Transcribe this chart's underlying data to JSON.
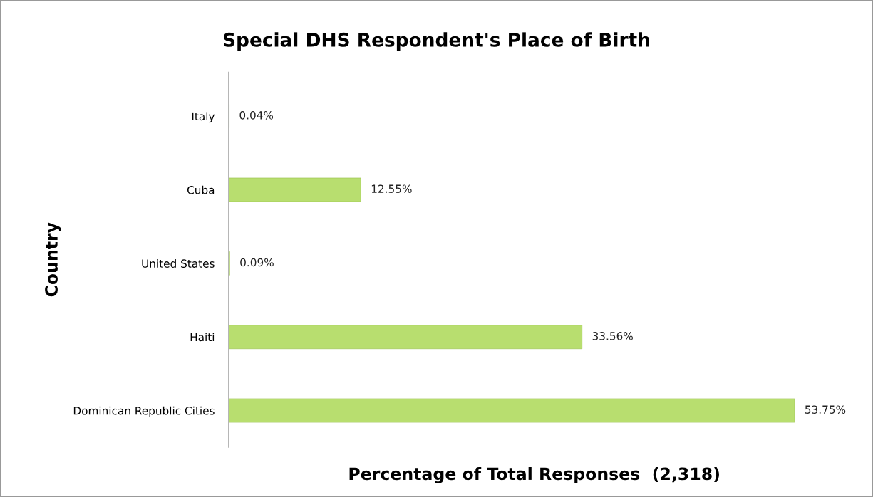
{
  "chart_data": {
    "type": "bar",
    "orientation": "horizontal",
    "title": "Special DHS Respondent's Place of Birth",
    "xlabel": "Percentage of Total Responses  (2,318)",
    "ylabel": "Country",
    "categories": [
      "Italy",
      "Cuba",
      "United States",
      "Haiti",
      "Dominican Republic Cities"
    ],
    "values": [
      0.04,
      12.55,
      0.09,
      33.56,
      53.75
    ],
    "value_labels": [
      "0.04%",
      "12.55%",
      "0.09%",
      "33.56%",
      "53.75%"
    ],
    "color": "#b8de6f",
    "tick_labels": "y",
    "grid": false,
    "legend": false
  }
}
